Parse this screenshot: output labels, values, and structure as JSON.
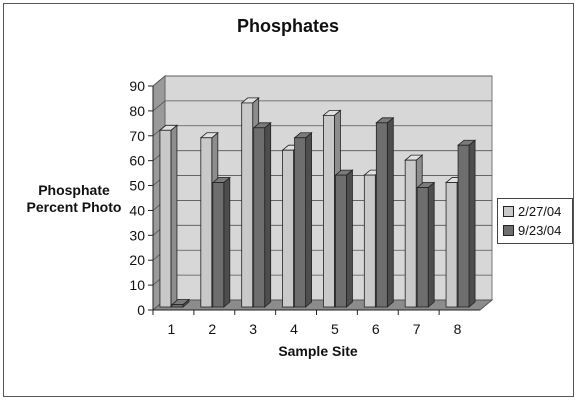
{
  "chart_data": {
    "type": "bar",
    "title": "Phosphates",
    "xlabel": "Sample Site",
    "ylabel_lines": [
      "Phosphate",
      "Percent Photo"
    ],
    "categories": [
      "1",
      "2",
      "3",
      "4",
      "5",
      "6",
      "7",
      "8"
    ],
    "series": [
      {
        "name": "2/27/04",
        "values": [
          71,
          68,
          82,
          63,
          77,
          53,
          59,
          50
        ],
        "color": "#c9c9c9"
      },
      {
        "name": "9/23/04",
        "values": [
          1,
          50,
          72,
          68,
          53,
          74,
          48,
          65
        ],
        "color": "#6e6e6e"
      }
    ],
    "ylim": [
      0,
      90
    ],
    "yticks": [
      0,
      10,
      20,
      30,
      40,
      50,
      60,
      70,
      80,
      90
    ],
    "grid": true,
    "legend_position": "right"
  }
}
